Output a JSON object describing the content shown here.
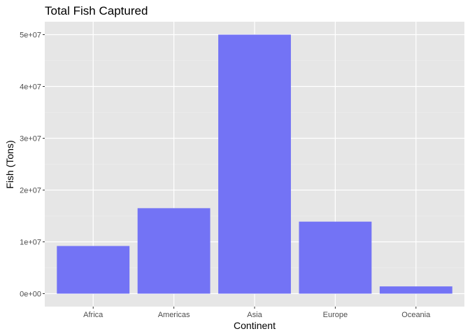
{
  "chart_data": {
    "type": "bar",
    "title": "Total Fish Captured",
    "xlabel": "Continent",
    "ylabel": "Fish (Tons)",
    "categories": [
      "Africa",
      "Americas",
      "Asia",
      "Europe",
      "Oceania"
    ],
    "values": [
      9200000,
      16500000,
      50000000,
      13900000,
      1400000
    ],
    "ylim": [
      -2500000,
      52500000
    ],
    "yticks": [
      0,
      10000000,
      20000000,
      30000000,
      40000000,
      50000000
    ],
    "ytick_labels": [
      "0e+00",
      "1e+07",
      "2e+07",
      "3e+07",
      "4e+07",
      "5e+07"
    ],
    "grid": true,
    "legend": "none",
    "colors": {
      "bar": "#7373f5",
      "panel": "#e6e6e6",
      "grid_major": "#ffffff",
      "grid_minor": "#f0f0f0"
    }
  }
}
